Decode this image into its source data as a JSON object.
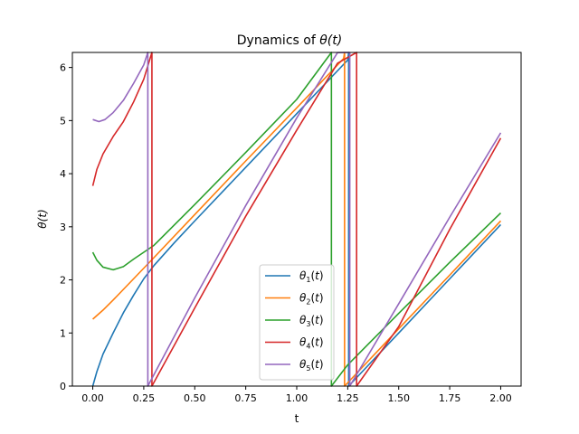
{
  "chart_data": {
    "type": "line",
    "title_prefix": "Dynamics of ",
    "title_math": "θ(t)",
    "xlabel": "t",
    "ylabel_math": "θ(t)",
    "xlim": [
      -0.1,
      2.1
    ],
    "ylim": [
      0,
      6.2832
    ],
    "xticks": [
      "0.00",
      "0.25",
      "0.50",
      "0.75",
      "1.00",
      "1.25",
      "1.50",
      "1.75",
      "2.00"
    ],
    "yticks": [
      "0",
      "1",
      "2",
      "3",
      "4",
      "5",
      "6"
    ],
    "legend_position": "lower-center",
    "series": [
      {
        "name": "θ1(t)",
        "sub": "1",
        "color": "#1f77b4",
        "points": [
          [
            0,
            0
          ],
          [
            0.02,
            0.27
          ],
          [
            0.05,
            0.6
          ],
          [
            0.1,
            1.0
          ],
          [
            0.15,
            1.38
          ],
          [
            0.2,
            1.71
          ],
          [
            0.25,
            2.02
          ],
          [
            0.3,
            2.27
          ],
          [
            0.4,
            2.7
          ],
          [
            0.5,
            3.11
          ],
          [
            0.75,
            4.12
          ],
          [
            1.0,
            5.13
          ],
          [
            1.25,
            6.14
          ],
          [
            1.2545,
            6.2832
          ],
          [
            1.2545,
            0
          ],
          [
            1.5,
            1.0
          ],
          [
            1.75,
            2.02
          ],
          [
            2.0,
            3.04
          ]
        ]
      },
      {
        "name": "θ2(t)",
        "sub": "2",
        "color": "#ff7f0e",
        "points": [
          [
            0,
            1.26
          ],
          [
            0.05,
            1.43
          ],
          [
            0.1,
            1.62
          ],
          [
            0.2,
            2.02
          ],
          [
            0.3,
            2.42
          ],
          [
            0.5,
            3.23
          ],
          [
            0.75,
            4.24
          ],
          [
            1.0,
            5.24
          ],
          [
            1.23,
            6.17
          ],
          [
            1.2345,
            6.2832
          ],
          [
            1.2345,
            0
          ],
          [
            1.5,
            1.08
          ],
          [
            1.75,
            2.09
          ],
          [
            2.0,
            3.11
          ]
        ]
      },
      {
        "name": "θ3(t)",
        "sub": "3",
        "color": "#2ca02c",
        "points": [
          [
            0,
            2.52
          ],
          [
            0.02,
            2.37
          ],
          [
            0.05,
            2.24
          ],
          [
            0.1,
            2.19
          ],
          [
            0.15,
            2.25
          ],
          [
            0.2,
            2.39
          ],
          [
            0.3,
            2.65
          ],
          [
            0.5,
            3.42
          ],
          [
            0.75,
            4.4
          ],
          [
            1.0,
            5.4
          ],
          [
            1.17,
            6.2832
          ],
          [
            1.17,
            0
          ],
          [
            1.25,
            0.4
          ],
          [
            1.5,
            1.37
          ],
          [
            1.75,
            2.33
          ],
          [
            2.0,
            3.26
          ]
        ]
      },
      {
        "name": "θ4(t)",
        "sub": "4",
        "color": "#d62728",
        "points": [
          [
            0,
            3.77
          ],
          [
            0.02,
            4.08
          ],
          [
            0.05,
            4.37
          ],
          [
            0.1,
            4.7
          ],
          [
            0.15,
            4.98
          ],
          [
            0.2,
            5.35
          ],
          [
            0.25,
            5.78
          ],
          [
            0.29,
            6.2832
          ],
          [
            0.29,
            0
          ],
          [
            0.5,
            1.47
          ],
          [
            0.75,
            3.2
          ],
          [
            1.0,
            4.82
          ],
          [
            1.2,
            6.08
          ],
          [
            1.2935,
            6.2832
          ],
          [
            1.2935,
            0
          ],
          [
            1.5,
            1.12
          ],
          [
            1.75,
            2.95
          ],
          [
            2.0,
            4.67
          ]
        ]
      },
      {
        "name": "θ5(t)",
        "sub": "5",
        "color": "#9467bd",
        "points": [
          [
            0,
            5.02
          ],
          [
            0.03,
            4.98
          ],
          [
            0.06,
            5.02
          ],
          [
            0.1,
            5.15
          ],
          [
            0.15,
            5.38
          ],
          [
            0.2,
            5.7
          ],
          [
            0.25,
            6.05
          ],
          [
            0.27,
            6.2832
          ],
          [
            0.27,
            0
          ],
          [
            0.5,
            1.66
          ],
          [
            0.75,
            3.4
          ],
          [
            1.0,
            5.05
          ],
          [
            1.2,
            6.28
          ],
          [
            1.26,
            6.2832
          ],
          [
            1.26,
            0
          ],
          [
            1.5,
            1.55
          ],
          [
            1.75,
            3.18
          ],
          [
            2.0,
            4.77
          ]
        ]
      }
    ]
  }
}
